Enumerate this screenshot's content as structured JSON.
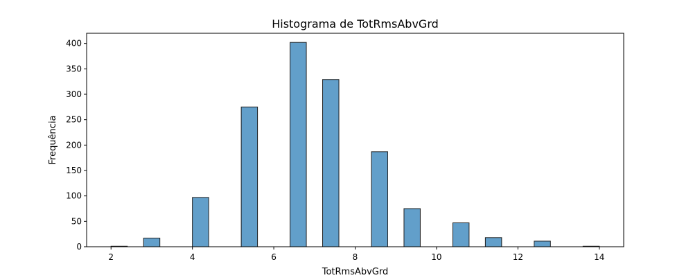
{
  "chart_data": {
    "type": "bar",
    "title": "Histograma de TotRmsAbvGrd",
    "xlabel": "TotRmsAbvGrd",
    "ylabel": "Frequência",
    "xlim": [
      1.4,
      14.6
    ],
    "ylim": [
      0,
      420
    ],
    "xticks": [
      2,
      4,
      6,
      8,
      10,
      12,
      14
    ],
    "yticks": [
      0,
      50,
      100,
      150,
      200,
      250,
      300,
      350,
      400
    ],
    "bin_edges": [
      2.0,
      2.4,
      2.8,
      3.2,
      3.6,
      4.0,
      4.4,
      4.8,
      5.2,
      5.6,
      6.0,
      6.4,
      6.8,
      7.2,
      7.6,
      8.0,
      8.4,
      8.8,
      9.2,
      9.6,
      10.0,
      10.4,
      10.8,
      11.2,
      11.6,
      12.0,
      12.4,
      12.8,
      13.2,
      13.6,
      14.0
    ],
    "counts": [
      1,
      0,
      17,
      0,
      0,
      97,
      0,
      0,
      275,
      0,
      0,
      402,
      0,
      329,
      0,
      0,
      187,
      0,
      75,
      0,
      0,
      47,
      0,
      18,
      0,
      0,
      11,
      0,
      0,
      1
    ],
    "grid": false,
    "legend": "none",
    "bar_color": "#629fca",
    "edge_color": "#1f1f1f"
  }
}
